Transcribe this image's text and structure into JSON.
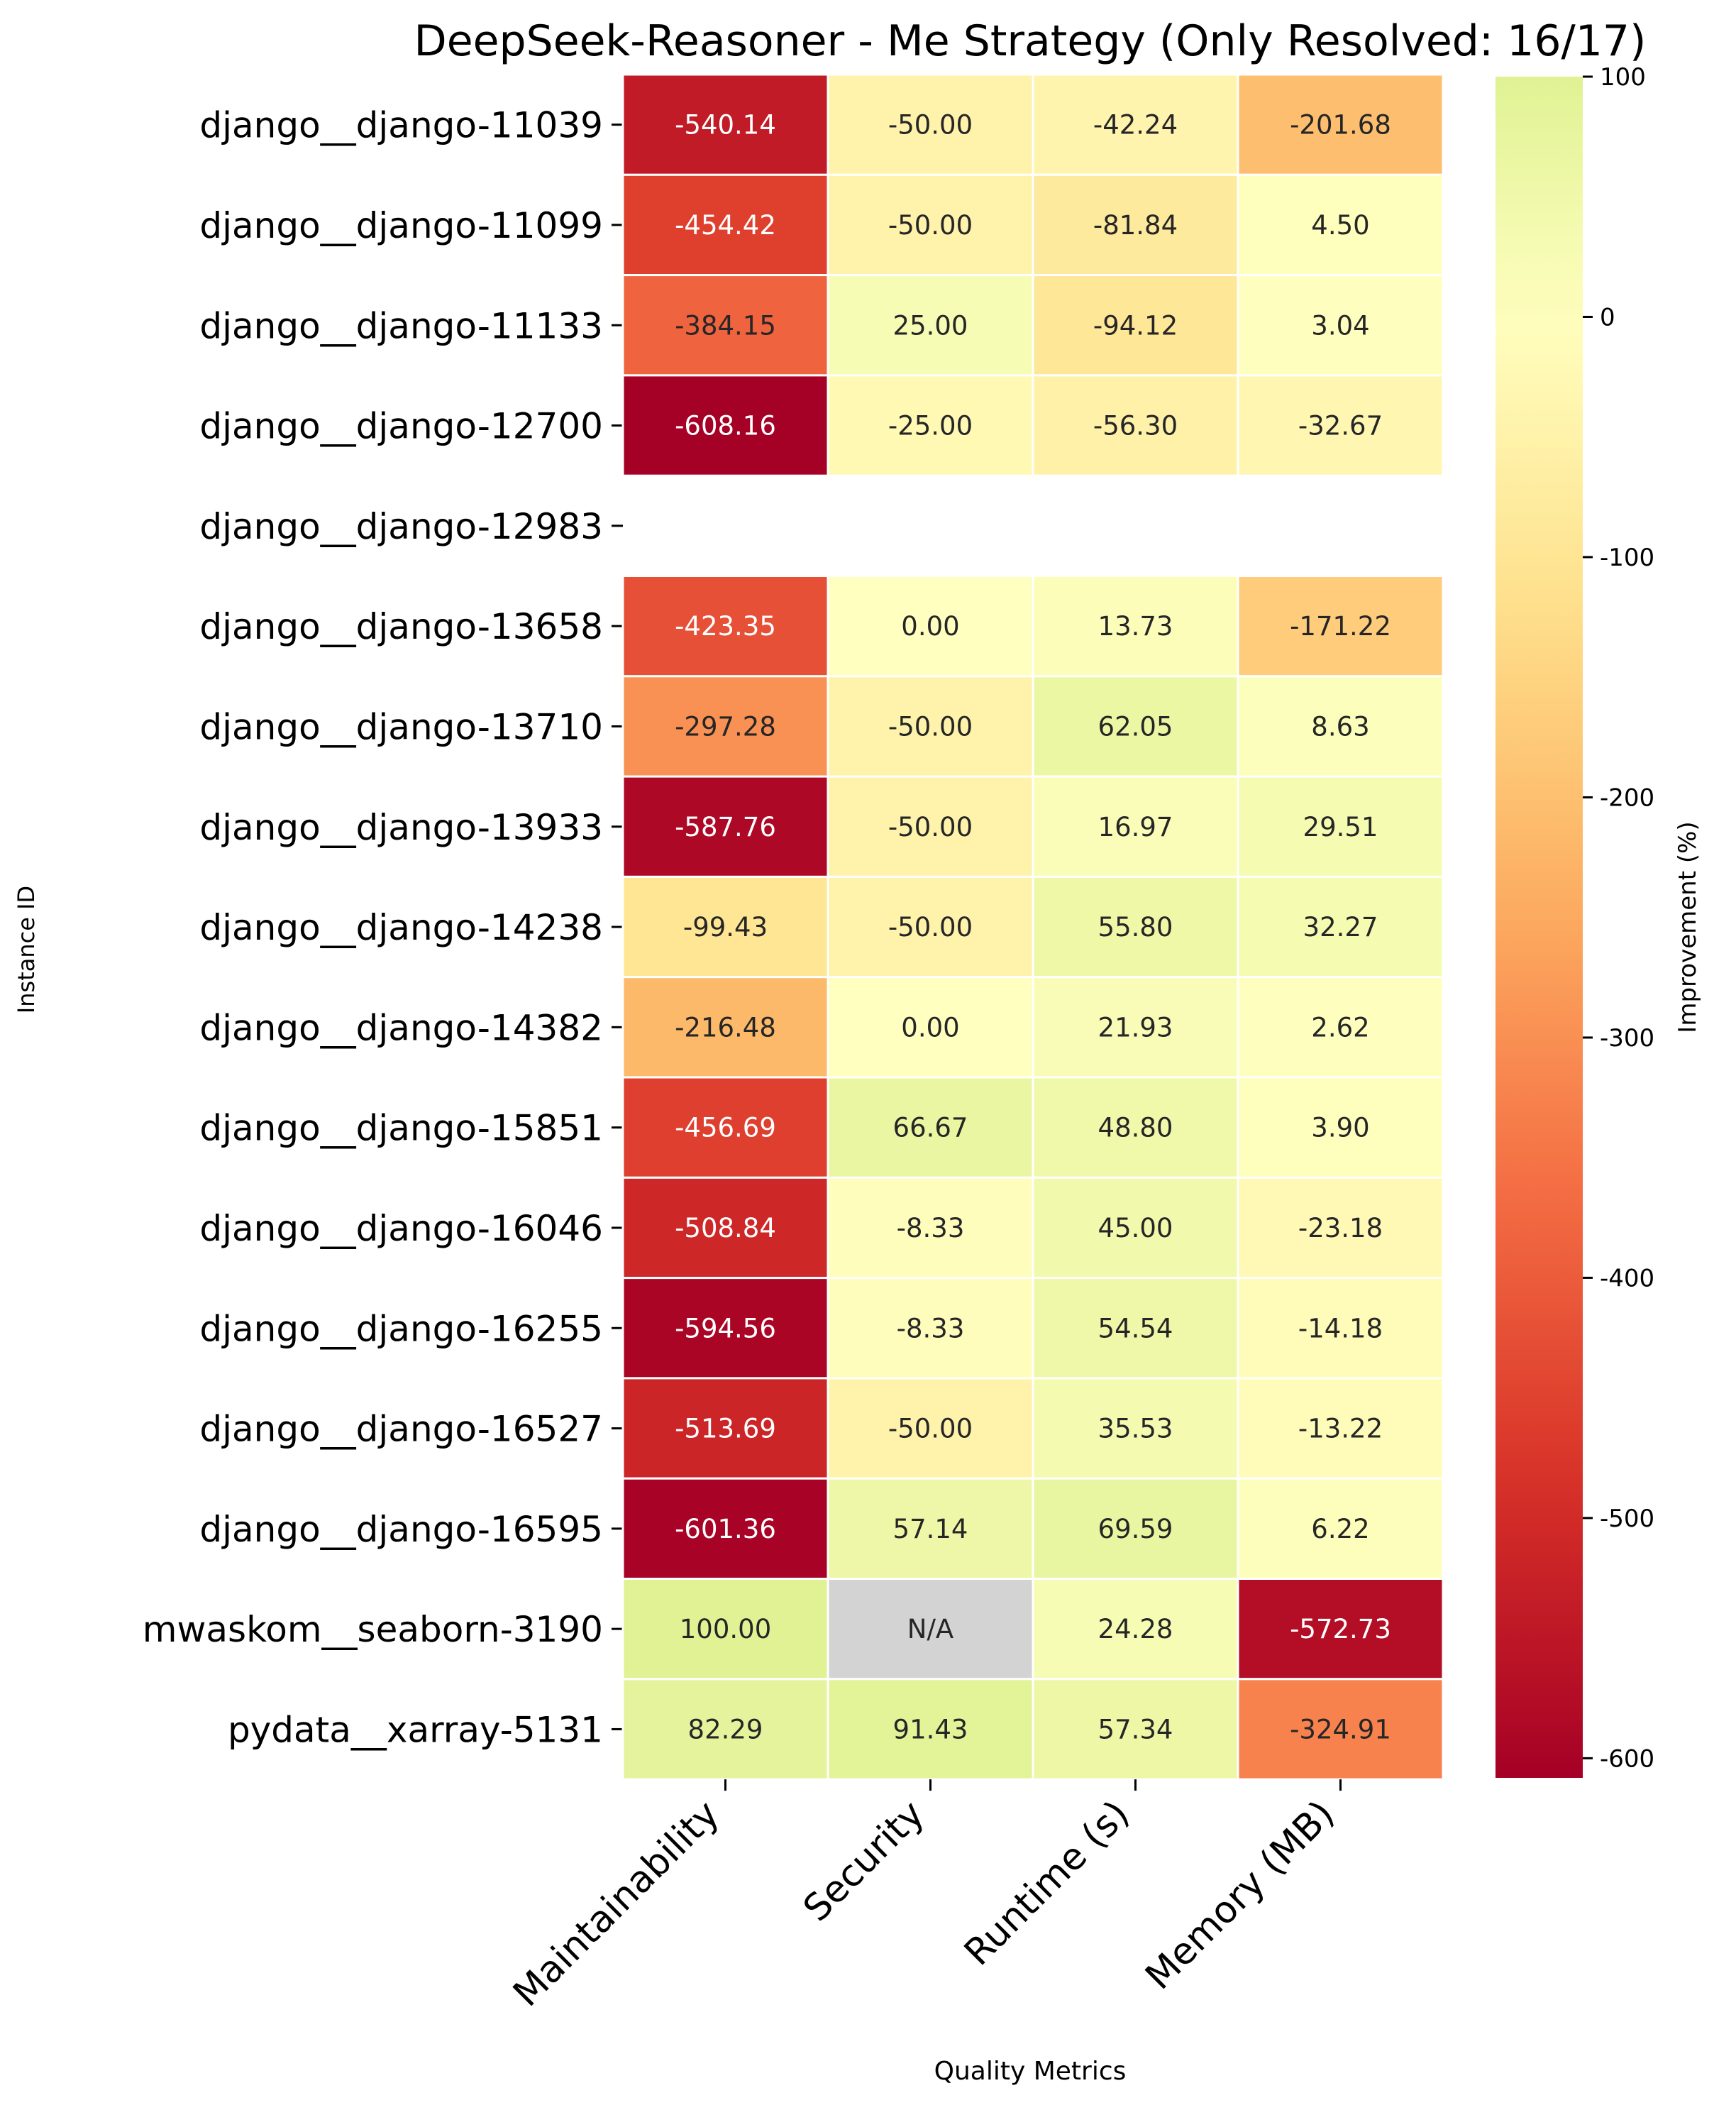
{
  "chart_data": {
    "type": "heatmap",
    "title": "DeepSeek-Reasoner - Me Strategy (Only Resolved: 16/17)",
    "xlabel": "Quality Metrics",
    "ylabel": "Instance ID",
    "columns": [
      "Maintainability",
      "Security",
      "Runtime (s)",
      "Memory (MB)"
    ],
    "rows": [
      "django__django-11039",
      "django__django-11099",
      "django__django-11133",
      "django__django-12700",
      "django__django-12983",
      "django__django-13658",
      "django__django-13710",
      "django__django-13933",
      "django__django-14238",
      "django__django-14382",
      "django__django-15851",
      "django__django-16046",
      "django__django-16255",
      "django__django-16527",
      "django__django-16595",
      "mwaskom__seaborn-3190",
      "pydata__xarray-5131"
    ],
    "values": [
      [
        -540.14,
        -50.0,
        -42.24,
        -201.68
      ],
      [
        -454.42,
        -50.0,
        -81.84,
        4.5
      ],
      [
        -384.15,
        25.0,
        -94.12,
        3.04
      ],
      [
        -608.16,
        -25.0,
        -56.3,
        -32.67
      ],
      [
        null,
        null,
        null,
        null
      ],
      [
        -423.35,
        0.0,
        13.73,
        -171.22
      ],
      [
        -297.28,
        -50.0,
        62.05,
        8.63
      ],
      [
        -587.76,
        -50.0,
        16.97,
        29.51
      ],
      [
        -99.43,
        -50.0,
        55.8,
        32.27
      ],
      [
        -216.48,
        0.0,
        21.93,
        2.62
      ],
      [
        -456.69,
        66.67,
        48.8,
        3.9
      ],
      [
        -508.84,
        -8.33,
        45.0,
        -23.18
      ],
      [
        -594.56,
        -8.33,
        54.54,
        -14.18
      ],
      [
        -513.69,
        -50.0,
        35.53,
        -13.22
      ],
      [
        -601.36,
        57.14,
        69.59,
        6.22
      ],
      [
        100.0,
        "N/A",
        24.28,
        -572.73
      ],
      [
        82.29,
        91.43,
        57.34,
        -324.91
      ]
    ],
    "missing_label": "N/A",
    "missing_color": "#d3d3d3",
    "colormap": "RdYlGn",
    "vmin": -608.16,
    "vmax": 100.0,
    "colorbar": {
      "label": "Improvement (%)",
      "ticks": [
        100,
        0,
        -100,
        -200,
        -300,
        -400,
        -500,
        -600
      ],
      "tick_labels": [
        "100",
        "0",
        "-100",
        "-200",
        "-300",
        "-400",
        "-500",
        "-600"
      ]
    },
    "cell_border_color": "#ffffff"
  }
}
